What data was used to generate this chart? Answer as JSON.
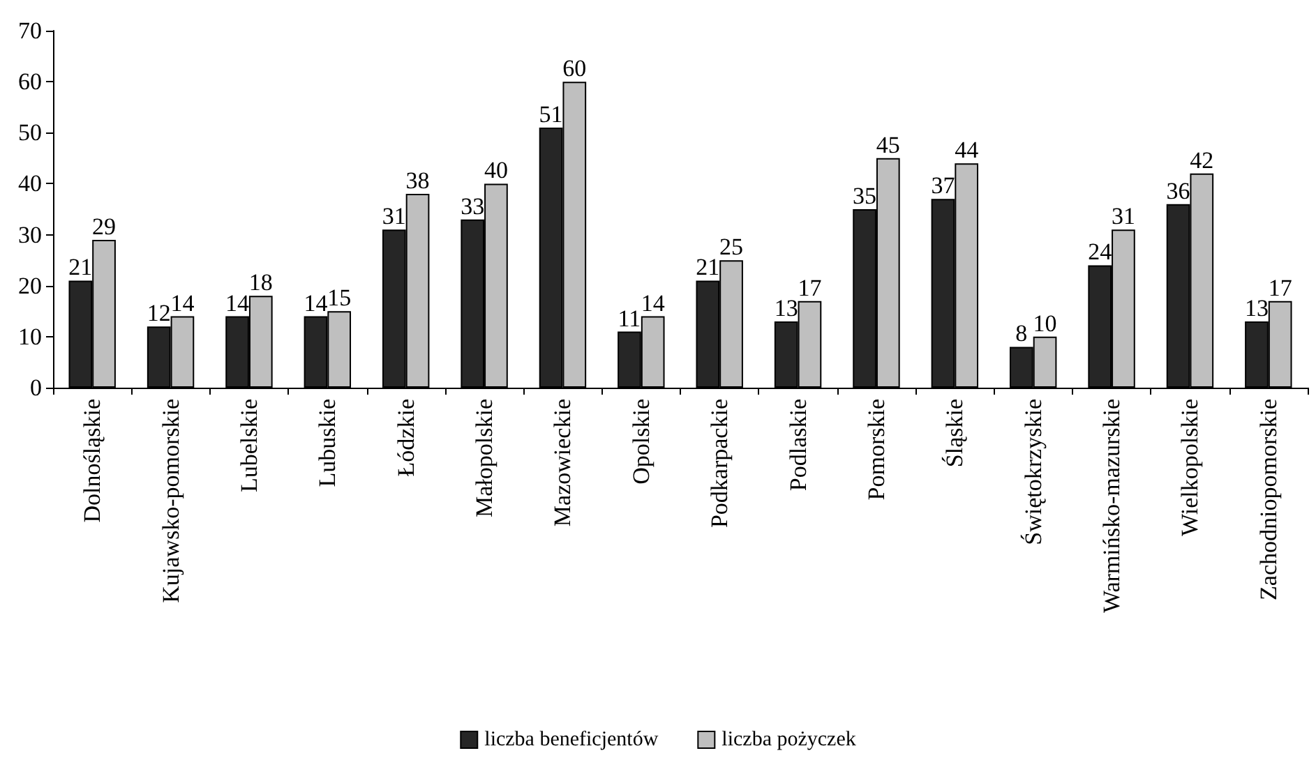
{
  "chart_data": {
    "type": "bar",
    "categories": [
      "Dolnośląskie",
      "Kujawsko-pomorskie",
      "Lubelskie",
      "Lubuskie",
      "Łódzkie",
      "Małopolskie",
      "Mazowieckie",
      "Opolskie",
      "Podkarpackie",
      "Podlaskie",
      "Pomorskie",
      "Śląskie",
      "Świętokrzyskie",
      "Warmińsko-mazurskie",
      "Wielkopolskie",
      "Zachodniopomorskie"
    ],
    "series": [
      {
        "name": "liczba beneficjentów",
        "color": "#262626",
        "values": [
          21,
          12,
          14,
          14,
          31,
          33,
          51,
          11,
          21,
          13,
          35,
          37,
          8,
          24,
          36,
          13
        ]
      },
      {
        "name": "liczba pożyczek",
        "color": "#bfbfbf",
        "values": [
          29,
          14,
          18,
          15,
          38,
          40,
          60,
          14,
          25,
          17,
          45,
          44,
          10,
          31,
          42,
          17
        ]
      }
    ],
    "ylim": [
      0,
      70
    ],
    "yticks": [
      0,
      10,
      20,
      30,
      40,
      50,
      60,
      70
    ],
    "grid": false,
    "legend": "bottom",
    "data_labels": true
  }
}
